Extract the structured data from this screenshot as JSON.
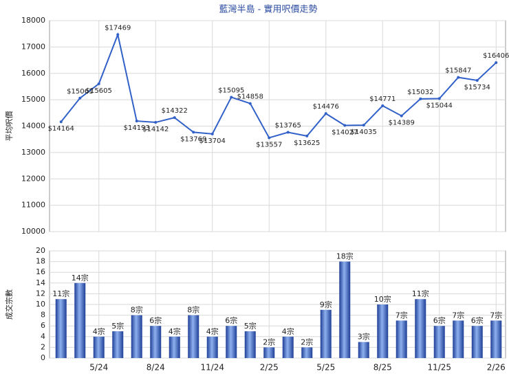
{
  "title": "藍灣半島 - 實用呎價走勢",
  "chart_data": [
    {
      "type": "line",
      "y_label": "平均呎價",
      "color": "#3060c8",
      "values": [
        14164,
        15061,
        15605,
        17469,
        14193,
        14142,
        14322,
        13769,
        13704,
        15095,
        14858,
        13557,
        13765,
        13625,
        14476,
        14027,
        14035,
        14771,
        14389,
        15032,
        15044,
        15847,
        15734,
        16406
      ],
      "value_labels": [
        "$14164",
        "$15061",
        "$15605",
        "$17469",
        "$14193",
        "$14142",
        "$14322",
        "$13769",
        "$13704",
        "$15095",
        "$14858",
        "$13557",
        "$13765",
        "$13625",
        "$14476",
        "$14027",
        "$14035",
        "$14771",
        "$14389",
        "$15032",
        "$15044",
        "$15847",
        "$15734",
        "$16406"
      ],
      "ylim": [
        10000,
        18000
      ],
      "yticks": [
        10000,
        11000,
        12000,
        13000,
        14000,
        15000,
        16000,
        17000,
        18000
      ],
      "grid": true
    },
    {
      "type": "bar",
      "y_label": "成交宗數",
      "color": "#3a66c4",
      "categories": [
        null,
        null,
        "5/24",
        null,
        null,
        "8/24",
        null,
        null,
        "11/24",
        null,
        null,
        "2/25",
        null,
        null,
        "5/25",
        null,
        null,
        "8/25",
        null,
        null,
        "11/25",
        null,
        null,
        "2/26"
      ],
      "values": [
        11,
        14,
        4,
        5,
        8,
        6,
        4,
        8,
        4,
        6,
        5,
        2,
        4,
        2,
        9,
        18,
        3,
        10,
        7,
        11,
        6,
        7,
        6,
        7
      ],
      "value_labels": [
        "11宗",
        "14宗",
        "4宗",
        "5宗",
        "8宗",
        "6宗",
        "4宗",
        "8宗",
        "4宗",
        "6宗",
        "5宗",
        "2宗",
        "4宗",
        "2宗",
        "9宗",
        "18宗",
        "3宗",
        "10宗",
        "7宗",
        "11宗",
        "6宗",
        "7宗",
        "6宗",
        "7宗"
      ],
      "ylim": [
        0,
        20
      ],
      "yticks": [
        0,
        2,
        4,
        6,
        8,
        10,
        12,
        14,
        16,
        18,
        20
      ],
      "grid": true
    }
  ]
}
